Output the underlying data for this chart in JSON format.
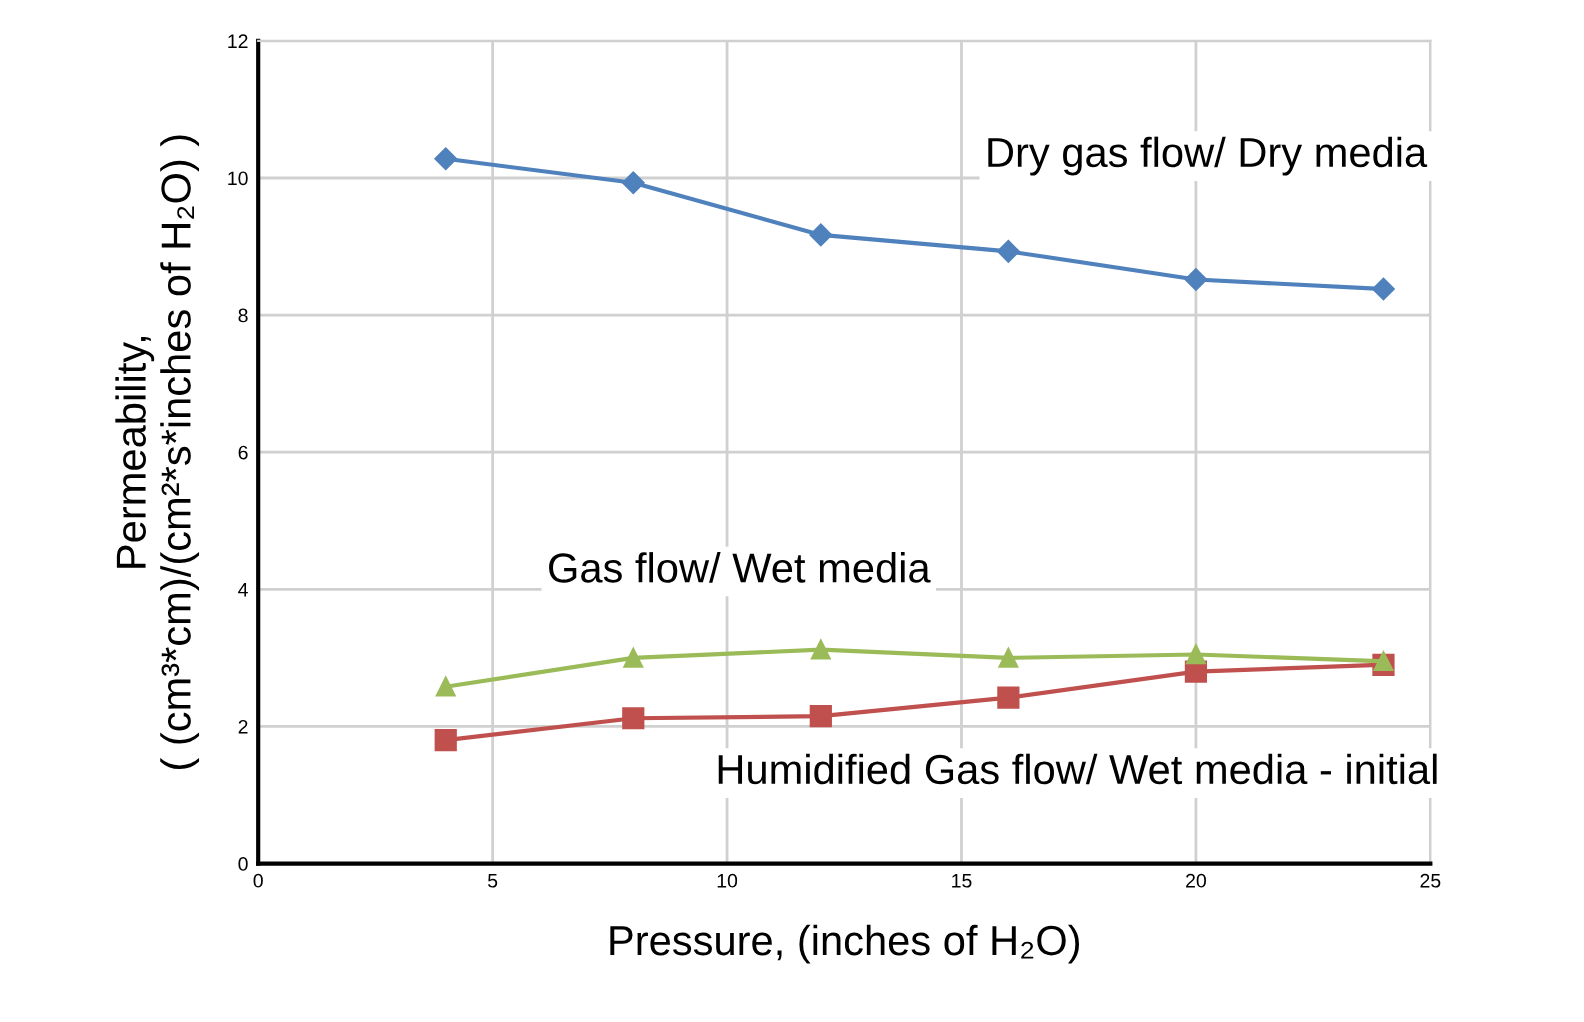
{
  "chart_data": {
    "type": "line",
    "x": [
      4,
      8,
      12,
      16,
      20,
      24
    ],
    "series": [
      {
        "name": "Dry gas flow/ Dry media",
        "color": "#4f81bd",
        "marker": "diamond",
        "values": [
          10.28,
          9.93,
          9.17,
          8.93,
          8.52,
          8.38
        ]
      },
      {
        "name": "Gas flow/ Wet media",
        "color": "#9bbb59",
        "marker": "triangle",
        "values": [
          2.58,
          3.0,
          3.12,
          3.0,
          3.05,
          2.95
        ]
      },
      {
        "name": "Humidified Gas flow/ Wet media - initial",
        "color": "#c0504d",
        "marker": "square",
        "values": [
          1.8,
          2.12,
          2.15,
          2.42,
          2.8,
          2.9
        ]
      }
    ],
    "xlabel": "Pressure, (inches of H₂O)",
    "ylabel": "Permeability,\n( (cm³*cm)/(cm²*s*inches of H₂O) )",
    "xlim": [
      0,
      25
    ],
    "xticks": [
      0,
      5,
      10,
      15,
      20,
      25
    ],
    "ylim": [
      0,
      12
    ],
    "yticks": [
      0,
      2,
      4,
      6,
      8,
      10,
      12
    ],
    "grid": true,
    "legend": false
  }
}
